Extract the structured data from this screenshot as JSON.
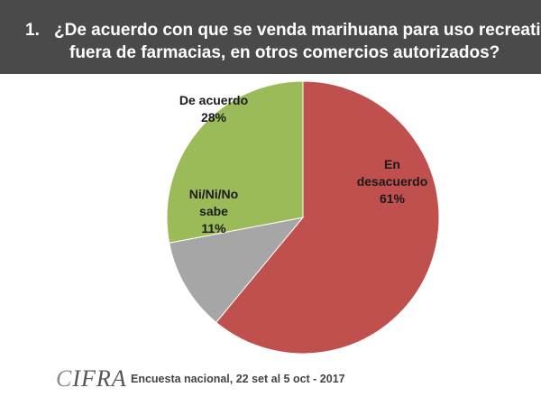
{
  "header": {
    "number": "1.",
    "line1": "¿De acuerdo con que se venda marihuana para uso recreativo",
    "line2": "fuera de farmacias, en otros comercios autorizados?"
  },
  "chart_data": {
    "type": "pie",
    "title": "¿De acuerdo con que se venda marihuana para uso recreativo fuera de farmacias, en otros comercios autorizados?",
    "start_angle_deg": 0,
    "direction": "clockwise",
    "slices": [
      {
        "name": "En desacuerdo",
        "value": 61,
        "label_lines": [
          "En",
          "desacuerdo",
          "61%"
        ],
        "color": "#c0504d"
      },
      {
        "name": "Ni/Ni/No sabe",
        "value": 11,
        "label_lines": [
          "Ni/Ni/No",
          "sabe",
          "11%"
        ],
        "color": "#a6a6a6"
      },
      {
        "name": "De acuerdo",
        "value": 28,
        "label_lines": [
          "De acuerdo",
          "28%"
        ],
        "color": "#9bbb59"
      }
    ]
  },
  "footer": {
    "logo_first": "C",
    "logo_rest": "IFRA",
    "note": "Encuesta nacional,  22 set al 5 oct - 2017"
  }
}
